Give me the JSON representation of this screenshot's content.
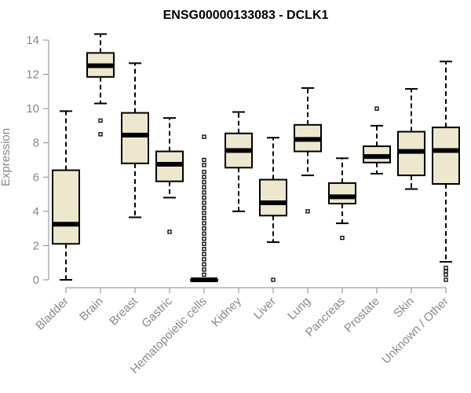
{
  "chart_data": {
    "type": "boxplot",
    "title": "ENSG00000133083 - DCLK1",
    "xlabel": "",
    "ylabel": "Expression",
    "ylim": [
      0,
      14
    ],
    "yticks": [
      0,
      2,
      4,
      6,
      8,
      10,
      12,
      14
    ],
    "box_color": "#ede7cd",
    "categories": [
      "Bladder",
      "Brain",
      "Breast",
      "Gastric",
      "Hematopoietic cells",
      "Kidney",
      "Liver",
      "Lung",
      "Pancreas",
      "Prostate",
      "Skin",
      "Unknown / Other"
    ],
    "boxes": [
      {
        "name": "Bladder",
        "whislo": 0.0,
        "q1": 2.1,
        "med": 3.25,
        "q3": 6.4,
        "whishi": 9.85,
        "outliers": []
      },
      {
        "name": "Brain",
        "whislo": 10.3,
        "q1": 11.85,
        "med": 12.5,
        "q3": 13.25,
        "whishi": 14.35,
        "outliers": [
          9.3,
          8.5
        ]
      },
      {
        "name": "Breast",
        "whislo": 3.65,
        "q1": 6.8,
        "med": 8.45,
        "q3": 9.75,
        "whishi": 12.65,
        "outliers": []
      },
      {
        "name": "Gastric",
        "whislo": 4.8,
        "q1": 5.75,
        "med": 6.75,
        "q3": 7.5,
        "whishi": 9.45,
        "outliers": [
          2.8
        ]
      },
      {
        "name": "Hematopoietic cells",
        "whislo": 0.0,
        "q1": 0.0,
        "med": 0.0,
        "q3": 0.0,
        "whishi": 0.0,
        "outliers": [
          8.35,
          7.0,
          6.7,
          6.3,
          6.0,
          5.7,
          5.4,
          5.1,
          4.8,
          4.5,
          4.2,
          3.9,
          3.6,
          3.3,
          3.0,
          2.7,
          2.4,
          2.1,
          1.8,
          1.5,
          1.2,
          0.9,
          0.6,
          0.3
        ]
      },
      {
        "name": "Kidney",
        "whislo": 4.0,
        "q1": 6.55,
        "med": 7.55,
        "q3": 8.55,
        "whishi": 9.8,
        "outliers": []
      },
      {
        "name": "Liver",
        "whislo": 2.2,
        "q1": 3.75,
        "med": 4.5,
        "q3": 5.85,
        "whishi": 8.3,
        "outliers": [
          0.0
        ]
      },
      {
        "name": "Lung",
        "whislo": 6.1,
        "q1": 7.5,
        "med": 8.2,
        "q3": 9.05,
        "whishi": 11.2,
        "outliers": [
          4.0
        ]
      },
      {
        "name": "Pancreas",
        "whislo": 3.3,
        "q1": 4.45,
        "med": 4.85,
        "q3": 5.65,
        "whishi": 7.1,
        "outliers": [
          2.45
        ]
      },
      {
        "name": "Prostate",
        "whislo": 6.2,
        "q1": 6.85,
        "med": 7.2,
        "q3": 7.8,
        "whishi": 9.0,
        "outliers": [
          10.0
        ]
      },
      {
        "name": "Skin",
        "whislo": 5.3,
        "q1": 6.1,
        "med": 7.5,
        "q3": 8.65,
        "whishi": 11.15,
        "outliers": []
      },
      {
        "name": "Unknown / Other",
        "whislo": 1.05,
        "q1": 5.6,
        "med": 7.55,
        "q3": 8.9,
        "whishi": 12.75,
        "outliers": [
          0.7,
          0.5,
          0.3,
          0.0
        ]
      }
    ]
  }
}
